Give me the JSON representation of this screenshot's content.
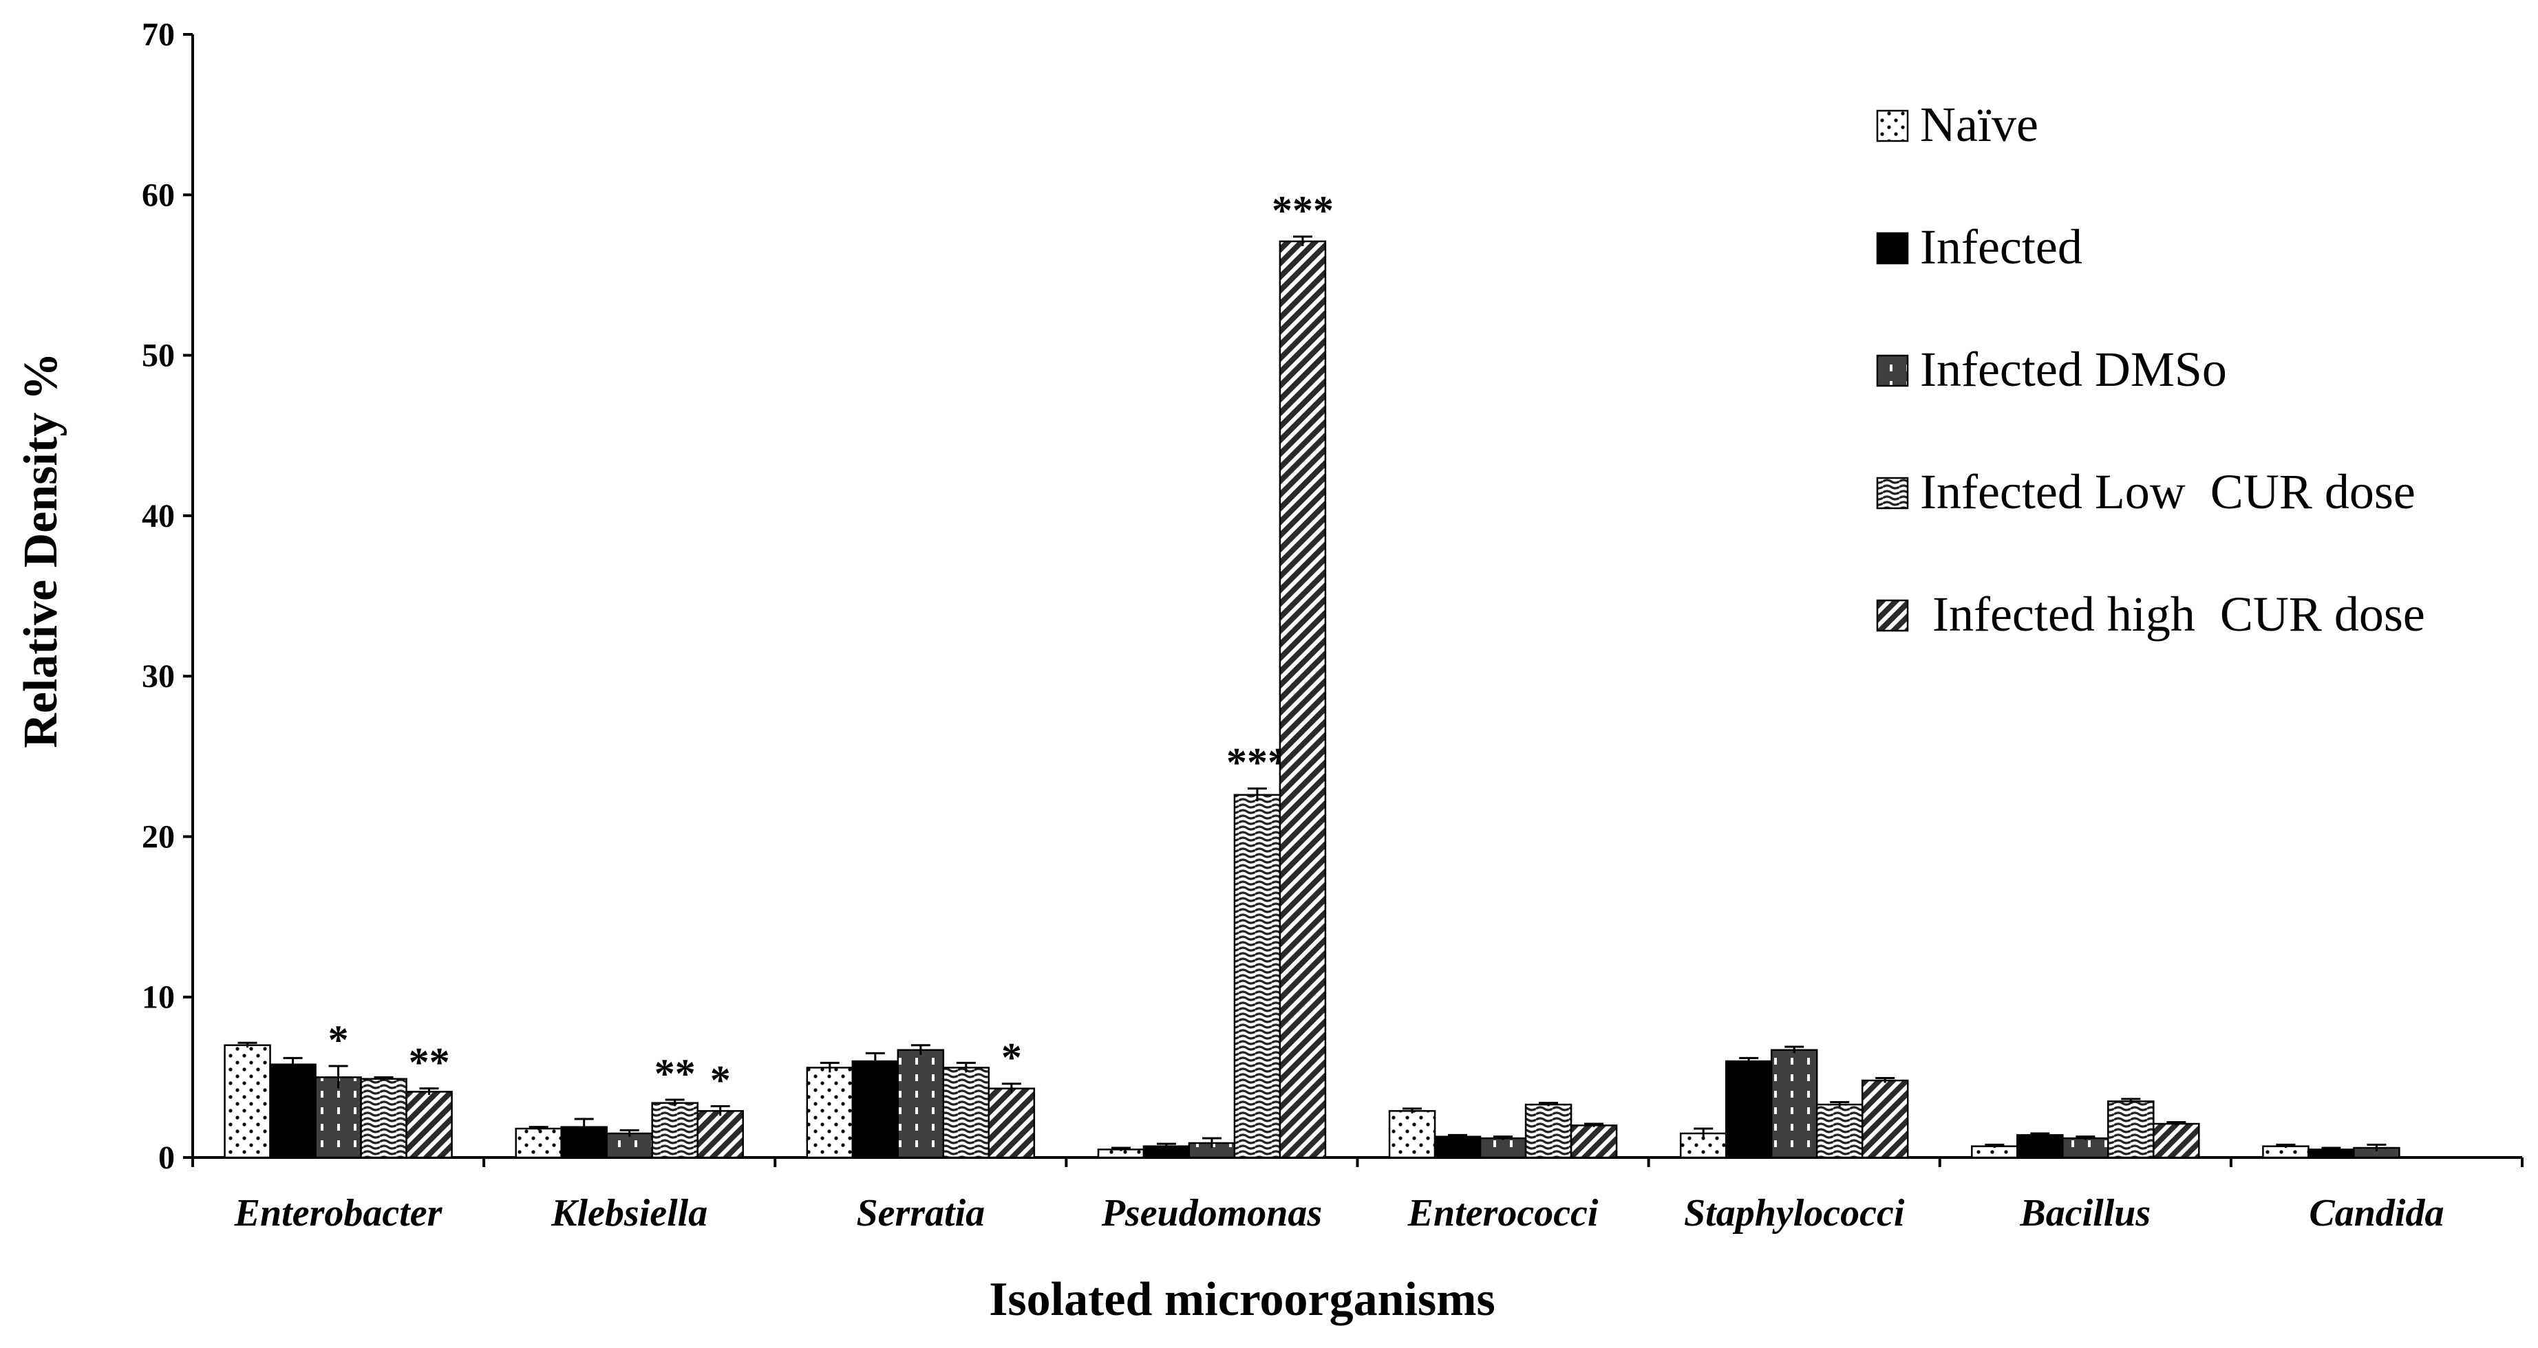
{
  "chart_data": {
    "type": "bar",
    "title": "",
    "xlabel": "Isolated microorganisms",
    "ylabel": "Relative Density %",
    "ylim": [
      0,
      70
    ],
    "yticks": [
      0,
      10,
      20,
      30,
      40,
      50,
      60,
      70
    ],
    "grid": false,
    "legend_position": "top-right",
    "categories": [
      "Enterobacter",
      "Klebsiella",
      "Serratia",
      "Pseudomonas",
      "Enterococci",
      "Staphylococci",
      "Bacillus",
      "Candida"
    ],
    "series": [
      {
        "name": "Naïve",
        "pattern": "dots",
        "color": "#ffffff",
        "values": [
          7.0,
          1.8,
          5.6,
          0.5,
          2.9,
          1.5,
          0.7,
          0.7
        ],
        "errors": [
          0.15,
          0.1,
          0.3,
          0.1,
          0.15,
          0.3,
          0.1,
          0.1
        ],
        "significance": [
          "",
          "",
          "",
          "",
          "",
          "",
          "",
          ""
        ]
      },
      {
        "name": "Infected",
        "pattern": "solid",
        "color": "#000000",
        "values": [
          5.8,
          1.9,
          6.0,
          0.7,
          1.3,
          6.0,
          1.4,
          0.5
        ],
        "errors": [
          0.4,
          0.5,
          0.5,
          0.15,
          0.1,
          0.2,
          0.1,
          0.1
        ],
        "significance": [
          "",
          "",
          "",
          "",
          "",
          "",
          "",
          ""
        ]
      },
      {
        "name": "Infected DMSo",
        "pattern": "dashes",
        "color": "#404040",
        "values": [
          5.0,
          1.5,
          6.7,
          0.9,
          1.2,
          6.7,
          1.2,
          0.6
        ],
        "errors": [
          0.7,
          0.2,
          0.3,
          0.3,
          0.1,
          0.2,
          0.1,
          0.2
        ],
        "significance": [
          "*",
          "",
          "",
          "",
          "",
          "",
          "",
          ""
        ]
      },
      {
        "name": "Infected Low  CUR dose",
        "pattern": "waves",
        "color": "#404040",
        "values": [
          4.9,
          3.4,
          5.6,
          22.6,
          3.3,
          3.3,
          3.5,
          null
        ],
        "errors": [
          0.1,
          0.2,
          0.3,
          0.4,
          0.1,
          0.15,
          0.15,
          null
        ],
        "significance": [
          "",
          "**",
          "",
          "***",
          "",
          "",
          "",
          ""
        ]
      },
      {
        "name": " Infected high  CUR dose",
        "pattern": "diagonal",
        "color": "#404040",
        "values": [
          4.1,
          2.9,
          4.3,
          57.1,
          2.0,
          4.8,
          2.1,
          null
        ],
        "errors": [
          0.2,
          0.3,
          0.3,
          0.3,
          0.1,
          0.15,
          0.1,
          null
        ],
        "significance": [
          "**",
          "*",
          "*",
          "***",
          "",
          "",
          "",
          ""
        ]
      }
    ]
  }
}
